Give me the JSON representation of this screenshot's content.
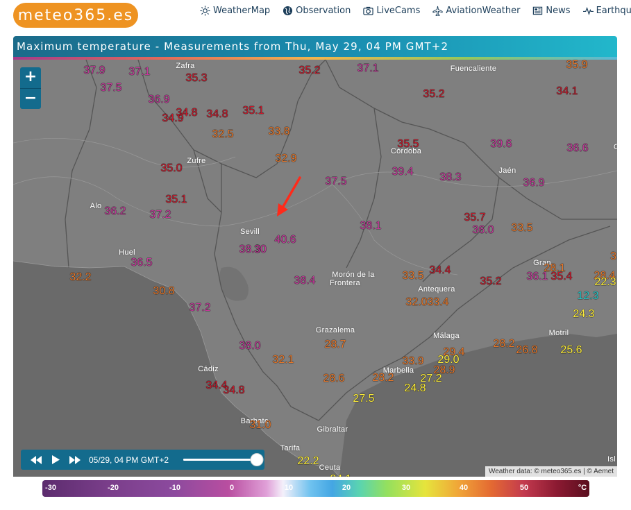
{
  "header": {
    "logo": "meteo365.es",
    "nav": [
      {
        "label": "WeatherMap",
        "icon": "sun-icon"
      },
      {
        "label": "Observation",
        "icon": "globe-icon"
      },
      {
        "label": "LiveCams",
        "icon": "camera-icon"
      },
      {
        "label": "AviationWeather",
        "icon": "plane-icon"
      },
      {
        "label": "News",
        "icon": "newspaper-icon"
      },
      {
        "label": "Earthquake",
        "icon": "seismograph-icon"
      }
    ]
  },
  "map": {
    "title": "Maximum temperature - Measurements from Thu, May 29, 04 PM GMT+2",
    "zoom_in": "+",
    "zoom_out": "−",
    "attribution": "Weather data: © meteo365.es | © Aemet",
    "places": [
      {
        "name": "Zafra"
      },
      {
        "name": "Fuencaliente"
      },
      {
        "name": "Zufre"
      },
      {
        "name": "Córdoba"
      },
      {
        "name": "Jaén"
      },
      {
        "name": "Alo"
      },
      {
        "name": "Sevill"
      },
      {
        "name": "Huel"
      },
      {
        "name": "Morón de la"
      },
      {
        "name": "Frontera"
      },
      {
        "name": "Antequera"
      },
      {
        "name": "Gran"
      },
      {
        "name": "Grazalema"
      },
      {
        "name": "Málaga"
      },
      {
        "name": "Motril"
      },
      {
        "name": "Cádiz"
      },
      {
        "name": "Marbella"
      },
      {
        "name": "Barbate"
      },
      {
        "name": "Gibraltar"
      },
      {
        "name": "Tarifa"
      },
      {
        "name": "Ceuta"
      },
      {
        "name": "Isl"
      },
      {
        "name": "C"
      }
    ],
    "temps": [
      {
        "v": "37.9",
        "c": "t-mag"
      },
      {
        "v": "37.1",
        "c": "t-mag"
      },
      {
        "v": "35.3",
        "c": "t-red"
      },
      {
        "v": "35.2",
        "c": "t-red"
      },
      {
        "v": "37.1",
        "c": "t-mag"
      },
      {
        "v": "35.9",
        "c": "t-org"
      },
      {
        "v": "37.5",
        "c": "t-mag"
      },
      {
        "v": "36.9",
        "c": "t-mag"
      },
      {
        "v": "35.2",
        "c": "t-red"
      },
      {
        "v": "34.1",
        "c": "t-red"
      },
      {
        "v": "34.8",
        "c": "t-red"
      },
      {
        "v": "34.9",
        "c": "t-red"
      },
      {
        "v": "34.8",
        "c": "t-red"
      },
      {
        "v": "35.1",
        "c": "t-red"
      },
      {
        "v": "32.5",
        "c": "t-org"
      },
      {
        "v": "33.8",
        "c": "t-org"
      },
      {
        "v": "35.5",
        "c": "t-red"
      },
      {
        "v": "39.6",
        "c": "t-mag"
      },
      {
        "v": "36.6",
        "c": "t-mag"
      },
      {
        "v": "32.9",
        "c": "t-org"
      },
      {
        "v": "35.0",
        "c": "t-red"
      },
      {
        "v": "39.4",
        "c": "t-mag"
      },
      {
        "v": "38.3",
        "c": "t-mag"
      },
      {
        "v": "37.5",
        "c": "t-mag"
      },
      {
        "v": "36.9",
        "c": "t-mag"
      },
      {
        "v": "35.1",
        "c": "t-red"
      },
      {
        "v": "36.2",
        "c": "t-mag"
      },
      {
        "v": "37.2",
        "c": "t-mag"
      },
      {
        "v": "35.7",
        "c": "t-red"
      },
      {
        "v": "38.1",
        "c": "t-mag"
      },
      {
        "v": "36.0",
        "c": "t-mag"
      },
      {
        "v": "33.5",
        "c": "t-org"
      },
      {
        "v": "40.6",
        "c": "t-mag"
      },
      {
        "v": "38.3",
        "c": "t-mag"
      },
      {
        "v": "30",
        "c": "t-mag"
      },
      {
        "v": "36.5",
        "c": "t-mag"
      },
      {
        "v": "32.2",
        "c": "t-org"
      },
      {
        "v": "33.5",
        "c": "t-org"
      },
      {
        "v": "34.4",
        "c": "t-red"
      },
      {
        "v": "28.1",
        "c": "t-org"
      },
      {
        "v": "31",
        "c": "t-org"
      },
      {
        "v": "38.4",
        "c": "t-mag"
      },
      {
        "v": "36.1",
        "c": "t-mag"
      },
      {
        "v": "35.4",
        "c": "t-red"
      },
      {
        "v": "28.4",
        "c": "t-org"
      },
      {
        "v": "22.3",
        "c": "t-yel"
      },
      {
        "v": "30.8",
        "c": "t-org"
      },
      {
        "v": "35.2",
        "c": "t-red"
      },
      {
        "v": "32.0",
        "c": "t-org"
      },
      {
        "v": "33.4",
        "c": "t-org"
      },
      {
        "v": "12.3",
        "c": "t-cyan"
      },
      {
        "v": "24.3",
        "c": "t-yel"
      },
      {
        "v": "37.2",
        "c": "t-mag"
      },
      {
        "v": "28.7",
        "c": "t-org"
      },
      {
        "v": "38.0",
        "c": "t-mag"
      },
      {
        "v": "29.4",
        "c": "t-org"
      },
      {
        "v": "28.2",
        "c": "t-org"
      },
      {
        "v": "26.8",
        "c": "t-org"
      },
      {
        "v": "25.6",
        "c": "t-yel"
      },
      {
        "v": "32.1",
        "c": "t-org"
      },
      {
        "v": "33.9",
        "c": "t-org"
      },
      {
        "v": "29.0",
        "c": "t-yel"
      },
      {
        "v": "28.9",
        "c": "t-org"
      },
      {
        "v": "28.6",
        "c": "t-org"
      },
      {
        "v": "28.2",
        "c": "t-org"
      },
      {
        "v": "27.2",
        "c": "t-yel"
      },
      {
        "v": "34.4",
        "c": "t-red"
      },
      {
        "v": "34.8",
        "c": "t-red"
      },
      {
        "v": "24.8",
        "c": "t-yel"
      },
      {
        "v": "27.5",
        "c": "t-yel"
      },
      {
        "v": "31.0",
        "c": "t-org"
      },
      {
        "v": "22.2",
        "c": "t-yel"
      },
      {
        "v": "24.1",
        "c": "t-yel"
      }
    ]
  },
  "player": {
    "time_label": "05/29, 04 PM GMT+2",
    "progress": 1.0
  },
  "scale": {
    "labels": [
      "-30",
      "-20",
      "-10",
      "0",
      "10",
      "20",
      "30",
      "40",
      "50",
      "°C"
    ]
  },
  "colors": {
    "accent": "#ee9322",
    "bar": "#136b8d",
    "arrow": "#ff2a1a"
  }
}
